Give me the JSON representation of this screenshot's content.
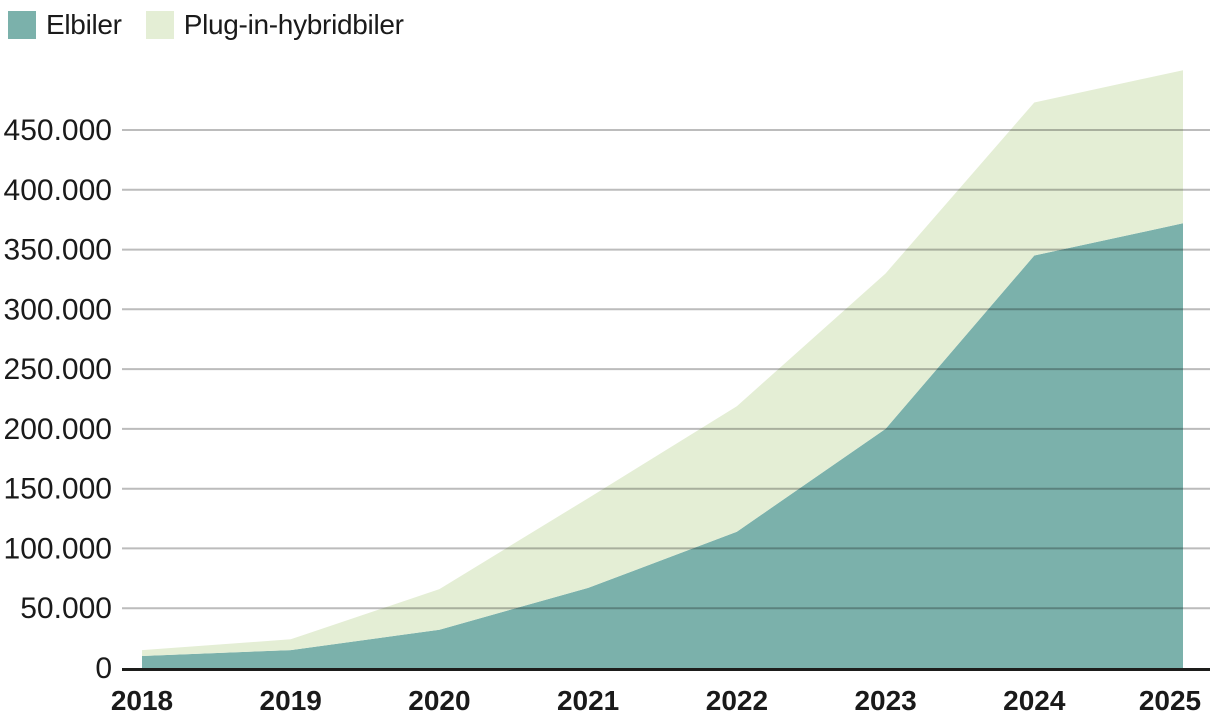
{
  "legend": {
    "items": [
      {
        "label": "Elbiler",
        "color": "#7bb1ab"
      },
      {
        "label": "Plug-in-hybridbiler",
        "color": "#e4eed5"
      }
    ]
  },
  "chart_data": {
    "type": "area",
    "stacked": true,
    "categories": [
      "2018",
      "2019",
      "2020",
      "2021",
      "2022",
      "2023",
      "2024",
      "2025"
    ],
    "series": [
      {
        "name": "Elbiler",
        "color": "#7bb1ab",
        "values": [
          10000,
          15000,
          32000,
          67000,
          114000,
          200000,
          345000,
          372000
        ]
      },
      {
        "name": "Plug-in-hybridbiler",
        "color": "#e4eed5",
        "values": [
          5000,
          9000,
          34000,
          75000,
          105000,
          130000,
          128000,
          128000
        ]
      }
    ],
    "ylim": [
      0,
      500000
    ],
    "yticks": {
      "values": [
        0,
        50000,
        100000,
        150000,
        200000,
        250000,
        300000,
        350000,
        400000,
        450000
      ],
      "labels": [
        "0",
        "50.000",
        "100.000",
        "150.000",
        "200.000",
        "250.000",
        "300.000",
        "350.000",
        "400.000",
        "450.000"
      ]
    },
    "grid": true,
    "legend_position": "top-left",
    "gridline_color": "#bcbcbc",
    "axis_color": "#1d1d1b",
    "text_color": "#1a1a1a"
  }
}
